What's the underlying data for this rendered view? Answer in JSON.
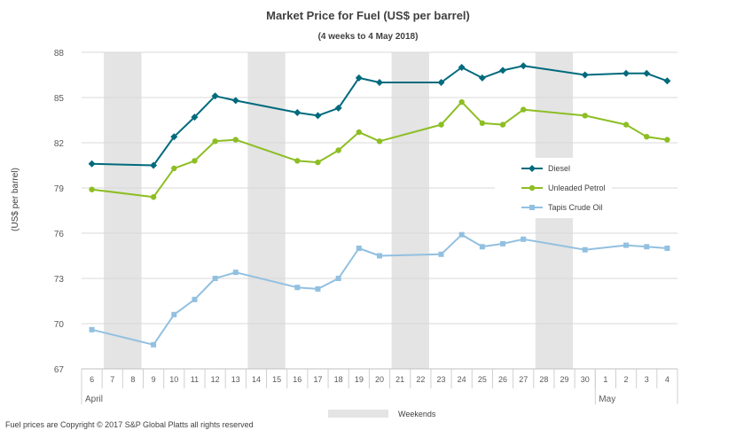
{
  "chart_data": {
    "type": "line",
    "title": "Market Price for Fuel (US$ per barrel)",
    "subtitle": "(4 weeks to 4 May 2018)",
    "ylabel": "(US$ per barrel)",
    "xlabel": "",
    "ylim": [
      67,
      88
    ],
    "yticks": [
      67,
      70,
      73,
      76,
      79,
      82,
      85,
      88
    ],
    "x_ticks": [
      "6",
      "7",
      "8",
      "9",
      "10",
      "11",
      "12",
      "13",
      "14",
      "15",
      "16",
      "17",
      "18",
      "19",
      "20",
      "21",
      "22",
      "23",
      "24",
      "25",
      "26",
      "27",
      "28",
      "29",
      "30",
      "1",
      "2",
      "3",
      "4"
    ],
    "months": [
      {
        "label": "April",
        "start_index": 0
      },
      {
        "label": "May",
        "start_index": 25
      }
    ],
    "weekend_ranges": [
      [
        1,
        2
      ],
      [
        8,
        9
      ],
      [
        15,
        16
      ],
      [
        22,
        23
      ]
    ],
    "weekend_label": "Weekends",
    "series": [
      {
        "name": "Diesel",
        "color": "#006a7d",
        "marker": "diamond",
        "points": [
          [
            0,
            80.6
          ],
          [
            3,
            80.5
          ],
          [
            4,
            82.4
          ],
          [
            5,
            83.7
          ],
          [
            6,
            85.1
          ],
          [
            7,
            84.8
          ],
          [
            10,
            84.0
          ],
          [
            11,
            83.8
          ],
          [
            12,
            84.3
          ],
          [
            13,
            86.3
          ],
          [
            14,
            86.0
          ],
          [
            17,
            86.0
          ],
          [
            18,
            87.0
          ],
          [
            19,
            86.3
          ],
          [
            20,
            86.8
          ],
          [
            21,
            87.1
          ],
          [
            24,
            86.5
          ],
          [
            26,
            86.6
          ],
          [
            27,
            86.6
          ],
          [
            28,
            86.1
          ]
        ]
      },
      {
        "name": "Unleaded Petrol",
        "color": "#8dbe23",
        "marker": "circle",
        "points": [
          [
            0,
            78.9
          ],
          [
            3,
            78.4
          ],
          [
            4,
            80.3
          ],
          [
            5,
            80.8
          ],
          [
            6,
            82.1
          ],
          [
            7,
            82.2
          ],
          [
            10,
            80.8
          ],
          [
            11,
            80.7
          ],
          [
            12,
            81.5
          ],
          [
            13,
            82.7
          ],
          [
            14,
            82.1
          ],
          [
            17,
            83.2
          ],
          [
            18,
            84.7
          ],
          [
            19,
            83.3
          ],
          [
            20,
            83.2
          ],
          [
            21,
            84.2
          ],
          [
            24,
            83.8
          ],
          [
            26,
            83.2
          ],
          [
            27,
            82.4
          ],
          [
            28,
            82.2
          ]
        ]
      },
      {
        "name": "Tapis Crude Oil",
        "color": "#92c0e0",
        "marker": "square",
        "points": [
          [
            0,
            69.6
          ],
          [
            3,
            68.6
          ],
          [
            4,
            70.6
          ],
          [
            5,
            71.6
          ],
          [
            6,
            73.0
          ],
          [
            7,
            73.4
          ],
          [
            10,
            72.4
          ],
          [
            11,
            72.3
          ],
          [
            12,
            73.0
          ],
          [
            13,
            75.0
          ],
          [
            14,
            74.5
          ],
          [
            17,
            74.6
          ],
          [
            18,
            75.9
          ],
          [
            19,
            75.1
          ],
          [
            20,
            75.3
          ],
          [
            21,
            75.6
          ],
          [
            24,
            74.9
          ],
          [
            26,
            75.2
          ],
          [
            27,
            75.1
          ],
          [
            28,
            75.0
          ]
        ]
      }
    ]
  },
  "footer": {
    "copyright": "Fuel prices are Copyright © 2017 S&P Global Platts all rights reserved"
  }
}
